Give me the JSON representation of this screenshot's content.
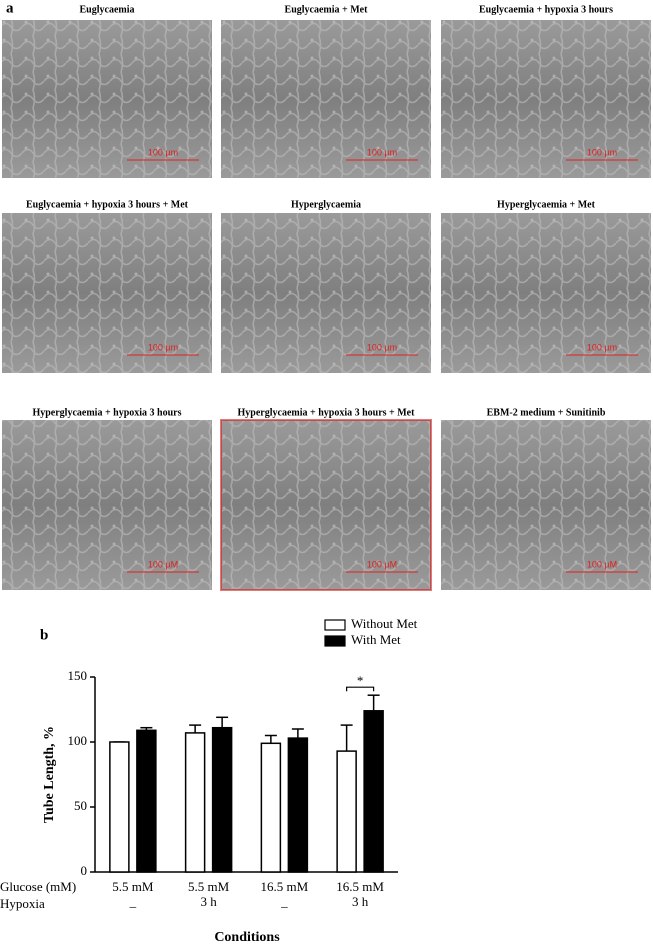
{
  "panels": {
    "a": {
      "label": "a",
      "images": [
        {
          "title": "Euglycaemia",
          "scale": "100 µm"
        },
        {
          "title": "Euglycaemia + Met",
          "scale": "100 µm"
        },
        {
          "title": "Euglycaemia + hypoxia 3 hours",
          "scale": "100 µm"
        },
        {
          "title": "Euglycaemia + hypoxia 3 hours + Met",
          "scale": "100 µm"
        },
        {
          "title": "Hyperglycaemia",
          "scale": "100 µm"
        },
        {
          "title": "Hyperglycaemia + Met",
          "scale": "100 µm"
        },
        {
          "title": "Hyperglycaemia + hypoxia 3 hours",
          "scale": "100 µM"
        },
        {
          "title": "Hyperglycaemia + hypoxia 3 hours + Met",
          "scale": "100 µM"
        },
        {
          "title": "EBM-2 medium + Sunitinib",
          "scale": "100 µM"
        }
      ]
    }
  },
  "chart_data": {
    "type": "bar",
    "panel_label": "b",
    "y_label": "Tube Length, %",
    "x_label": "Conditions",
    "row_titles": [
      "Glucose (mM)",
      "Hypoxia"
    ],
    "categories": [
      "5.5 mM",
      "5.5 mM",
      "16.5 mM",
      "16.5 mM"
    ],
    "hypoxia": [
      "_",
      "3 h",
      "_",
      "3 h"
    ],
    "series": [
      {
        "name": "Without Met",
        "color": "#ffffff",
        "values": [
          100,
          107,
          99,
          93
        ],
        "errors": [
          0,
          6,
          6,
          20
        ]
      },
      {
        "name": "With Met",
        "color": "#000000",
        "values": [
          109,
          111,
          103,
          124
        ],
        "errors": [
          2,
          8,
          7,
          12
        ]
      }
    ],
    "annotation": "*",
    "ylim": [
      0,
      150
    ],
    "yticks": [
      0,
      50,
      100,
      150
    ]
  }
}
